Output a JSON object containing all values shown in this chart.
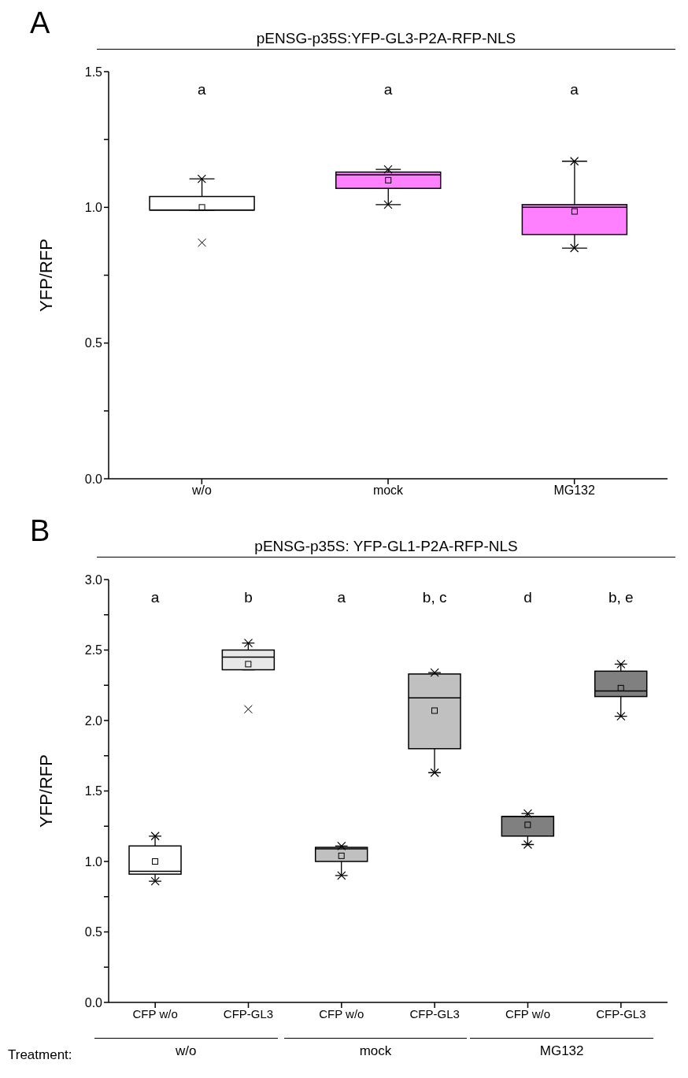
{
  "chart_data": [
    {
      "type": "box",
      "title": "pENSG-p35S:YFP-GL3-P2A-RFP-NLS",
      "ylabel": "YFP/RFP",
      "categories": [
        "w/o",
        "mock",
        "MG132"
      ],
      "colors": [
        "#ffffff",
        "#ff80ff",
        "#ff80ff"
      ],
      "boxes": [
        {
          "low": 0.99,
          "q1": 0.99,
          "median": 0.99,
          "q3": 1.04,
          "high": 1.105,
          "mean": 1.0,
          "outliers": [
            0.87
          ]
        },
        {
          "low": 1.01,
          "q1": 1.07,
          "median": 1.12,
          "q3": 1.13,
          "high": 1.14,
          "mean": 1.1
        },
        {
          "low": 0.85,
          "q1": 0.9,
          "median": 1.0,
          "q3": 1.01,
          "high": 1.17,
          "mean": 0.985
        }
      ],
      "series": [
        {
          "type": "scatter",
          "marker": "cross",
          "color": "#000000",
          "values": [
            1.105,
            1.14,
            1.17
          ]
        },
        {
          "type": "scatter",
          "marker": "cross",
          "color": "#000000",
          "values": [
            null,
            1.01,
            0.85
          ]
        }
      ],
      "ylim": [
        0,
        1.5
      ],
      "yticks": [
        {
          "value": 0,
          "label": "0.0"
        },
        {
          "value": 0.25,
          "label": null
        },
        {
          "value": 0.5,
          "label": "0.5"
        },
        {
          "value": 0.75,
          "label": null
        },
        {
          "value": 1,
          "label": "1.0"
        },
        {
          "value": 1.25,
          "label": null
        },
        {
          "value": 1.5,
          "label": "1.5"
        }
      ],
      "grid": false,
      "legend": false,
      "annotations": [
        "A",
        "a",
        "a",
        "a"
      ]
    },
    {
      "type": "box",
      "title": "pENSG-p35S: YFP-GL1-P2A-RFP-NLS",
      "ylabel": "YFP/RFP",
      "categories": [
        "CFP w/o",
        "CFP-GL3",
        "CFP w/o",
        "CFP-GL3",
        "CFP w/o",
        "CFP-GL3"
      ],
      "colors": [
        "#ffffff",
        "#e8e8e8",
        "#c0c0c0",
        "#c0c0c0",
        "#808080",
        "#808080"
      ],
      "boxes": [
        {
          "low": 0.86,
          "q1": 0.91,
          "median": 0.93,
          "q3": 1.11,
          "high": 1.18,
          "mean": 1.0
        },
        {
          "low": 2.36,
          "q1": 2.36,
          "median": 2.45,
          "q3": 2.5,
          "high": 2.55,
          "mean": 2.4,
          "outliers": [
            2.08
          ]
        },
        {
          "low": 0.9,
          "q1": 1.0,
          "median": 1.09,
          "q3": 1.1,
          "high": 1.11,
          "mean": 1.04
        },
        {
          "low": 1.63,
          "q1": 1.8,
          "median": 2.16,
          "q3": 2.33,
          "high": 2.34,
          "mean": 2.07
        },
        {
          "low": 1.12,
          "q1": 1.18,
          "median": 1.32,
          "q3": 1.32,
          "high": 1.34,
          "mean": 1.26
        },
        {
          "low": 2.03,
          "q1": 2.17,
          "median": 2.21,
          "q3": 2.35,
          "high": 2.4,
          "mean": 2.23
        }
      ],
      "series": [
        {
          "type": "scatter",
          "marker": "cross",
          "color": "#000000",
          "values": [
            1.18,
            2.55,
            1.11,
            2.34,
            1.34,
            2.4
          ]
        },
        {
          "type": "scatter",
          "marker": "cross",
          "color": "#000000",
          "values": [
            0.86,
            null,
            0.9,
            1.63,
            1.12,
            2.03
          ]
        }
      ],
      "ylim": [
        0,
        3
      ],
      "yticks": [
        {
          "value": 0,
          "label": "0.0"
        },
        {
          "value": 0.25,
          "label": null
        },
        {
          "value": 0.5,
          "label": "0.5"
        },
        {
          "value": 0.75,
          "label": null
        },
        {
          "value": 1,
          "label": "1.0"
        },
        {
          "value": 1.25,
          "label": null
        },
        {
          "value": 1.5,
          "label": "1.5"
        },
        {
          "value": 1.75,
          "label": null
        },
        {
          "value": 2,
          "label": "2.0"
        },
        {
          "value": 2.25,
          "label": null
        },
        {
          "value": 2.5,
          "label": "2.5"
        },
        {
          "value": 2.75,
          "label": null
        },
        {
          "value": 3,
          "label": "3.0"
        }
      ],
      "grid": false,
      "legend": false,
      "annotations": [
        "B",
        "a",
        "b",
        "a",
        "b, c",
        "d",
        "b, e",
        "Treatment:",
        "w/o",
        "mock",
        "MG132"
      ]
    }
  ]
}
